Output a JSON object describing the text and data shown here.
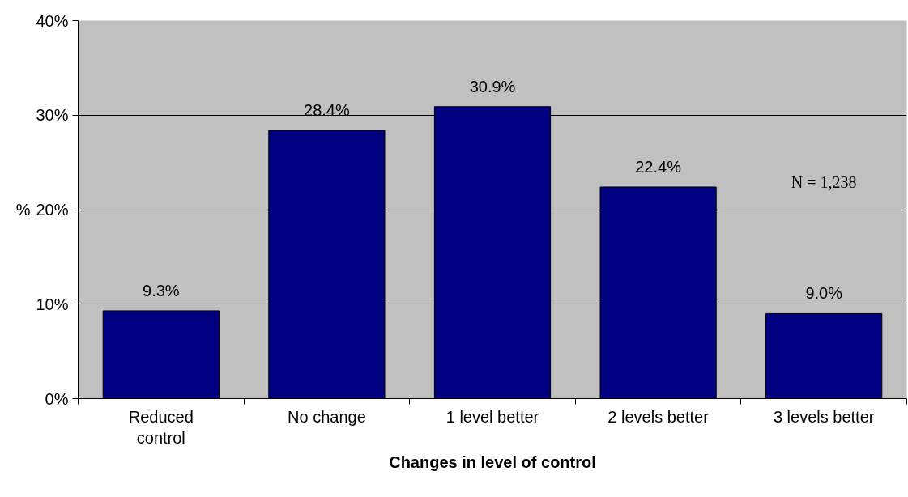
{
  "chart_data": {
    "type": "bar",
    "xlabel": "Changes in level of control",
    "ylabel": "%",
    "categories": [
      "Reduced\ncontrol",
      "No change",
      "1 level better",
      "2 levels better",
      "3 levels better"
    ],
    "values": [
      9.3,
      28.4,
      30.9,
      22.4,
      9.0
    ],
    "value_labels": [
      "9.3%",
      "28.4%",
      "30.9%",
      "22.4%",
      "9.0%"
    ],
    "color": "#000080",
    "ylim": [
      0,
      40
    ],
    "yticks": [
      {
        "value": 0,
        "label": "0%"
      },
      {
        "value": 10,
        "label": "10%"
      },
      {
        "value": 20,
        "label": "20%"
      },
      {
        "value": 30,
        "label": "30%"
      },
      {
        "value": 40,
        "label": "40%"
      }
    ],
    "grid": "y",
    "annotations": [
      "N = 1,238"
    ]
  }
}
